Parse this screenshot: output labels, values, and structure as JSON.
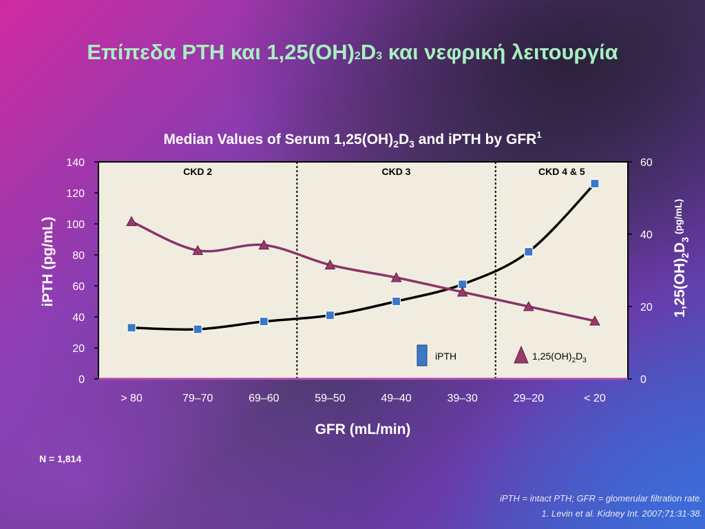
{
  "slide": {
    "title_pre": "Επίπεδα PTH και 1,25(OH)",
    "title_sub1": "2",
    "title_mid": "D",
    "title_sub2": "3",
    "title_post": " και νεφρική λειτουργία"
  },
  "chart_title": {
    "pre": "Median Values of Serum 1,25(OH)",
    "sub1": "2",
    "mid": "D",
    "sub2": "3",
    "post": " and iPTH by GFR",
    "sup": "1"
  },
  "chart_data": {
    "type": "line",
    "categories": [
      "> 80",
      "79–70",
      "69–60",
      "59–50",
      "49–40",
      "39–30",
      "29–20",
      "< 20"
    ],
    "series": [
      {
        "name": "iPTH",
        "axis": "left",
        "marker": "square",
        "color": "#000000",
        "marker_color": "#3a78c8",
        "values": [
          33,
          32,
          37,
          41,
          50,
          61,
          82,
          126
        ]
      },
      {
        "name": "1,25(OH)2D3",
        "axis": "right",
        "marker": "triangle",
        "color": "#8a3468",
        "marker_color": "#9a3a6a",
        "values": [
          43.5,
          35.5,
          37,
          31.5,
          28,
          24,
          20,
          16
        ]
      }
    ],
    "xlabel": "GFR (mL/min)",
    "ylabel_left": "iPTH (pg/mL)",
    "ylabel_right_main": "1,25(OH)",
    "ylabel_right_sub1": "2",
    "ylabel_right_mid": "D",
    "ylabel_right_sub2": "3",
    "ylabel_right_unit": " (pg/mL)",
    "ylim_left": [
      0,
      140
    ],
    "yticks_left": [
      "0",
      "20",
      "40",
      "60",
      "80",
      "100",
      "120",
      "140"
    ],
    "ylim_right": [
      0,
      60
    ],
    "yticks_right": [
      "0",
      "20",
      "40",
      "60"
    ],
    "regions": [
      {
        "label": "CKD 2",
        "from_index": 0,
        "to_index": 2
      },
      {
        "label": "CKD 3",
        "from_index": 3,
        "to_index": 5
      },
      {
        "label": "CKD 4 & 5",
        "from_index": 6,
        "to_index": 7
      }
    ],
    "legend": {
      "placement": "bottom-right",
      "ipth_label": "iPTH",
      "d3_label_pre": "1,25(OH)",
      "d3_label_sub1": "2",
      "d3_label_mid": "D",
      "d3_label_sub2": "3"
    },
    "colors": {
      "plot_bg": "#f0ede0",
      "ipth_marker": "#3a78c8",
      "d3_line": "#8a3468",
      "baseline": "#b04ab0"
    }
  },
  "n_label": "N = 1,814",
  "footnotes": [
    "iPTH = intact PTH; GFR = glomerular filtration rate.",
    "1. Levin et al. Kidney Int. 2007;71:31-38."
  ]
}
